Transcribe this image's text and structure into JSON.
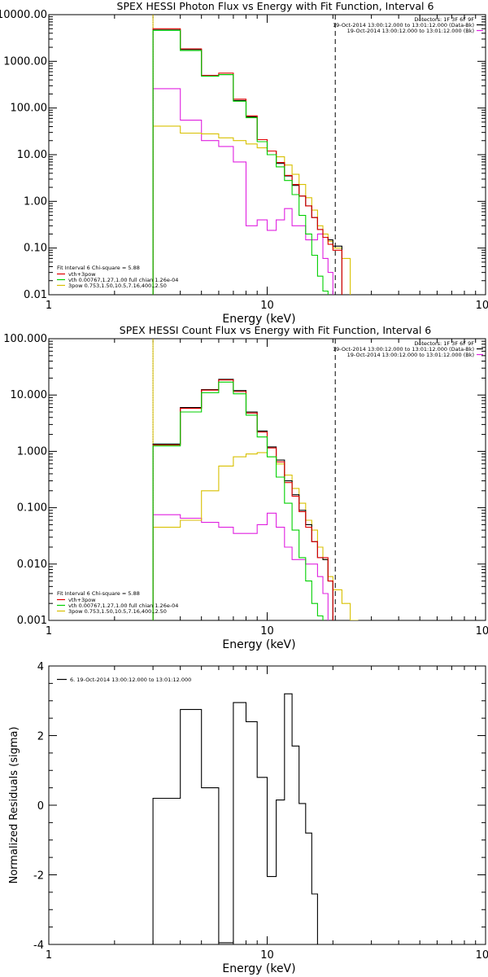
{
  "chart_data": [
    {
      "type": "line",
      "title": "SPEX HESSI Photon Flux vs Energy with Fit Function, Interval 6",
      "xlabel": "Energy (keV)",
      "ylabel": "",
      "xscale": "log",
      "yscale": "log",
      "xlim": [
        1,
        100
      ],
      "ylim": [
        0.01,
        10000
      ],
      "xticks": [
        "1",
        "10",
        "100"
      ],
      "yticks": [
        "0.01",
        "0.10",
        "1.00",
        "10.00",
        "100.00",
        "1000.00",
        "10000.00"
      ],
      "vlines": [
        {
          "x": 3,
          "style": "dotted",
          "color": "#000000"
        },
        {
          "x": 3,
          "style": "solid",
          "color": "#d8c000"
        },
        {
          "x": 20.5,
          "style": "dashed",
          "color": "#000000"
        }
      ],
      "header_lines": [
        "Detectors: 1F 3F 6F 9F",
        "19-Oct-2014 13:00:12.000 to 13:01:12.000 (Data-Bk)",
        "19-Oct-2014 13:00:12.000 to 13:01:12.000 (Bk)"
      ],
      "header_colors": [
        "",
        "#000000",
        "#e020e0"
      ],
      "legend_title": "Fit Interval 6   Chi-square = 5.88",
      "legend": [
        {
          "label": "vth+3pow",
          "color": "#e00000"
        },
        {
          "label": "vth 0.00767,1.27,1.00  full chian 1.26e-04",
          "color": "#00d000"
        },
        {
          "label": "3pow 0.753,1.50,10.5,7.16,400.,2.50",
          "color": "#d8c000"
        }
      ],
      "edges": [
        3,
        4,
        5,
        6,
        7,
        8,
        9,
        10,
        11,
        12,
        13,
        14,
        15,
        16,
        17,
        18,
        19,
        20,
        22,
        24,
        26
      ],
      "series": [
        {
          "name": "Data-Bk",
          "color": "#000000",
          "values": [
            4700,
            1800,
            500,
            520,
            145,
            65,
            21,
            12,
            6.5,
            3.5,
            2.2,
            1.3,
            0.8,
            0.45,
            0.25,
            0.17,
            0.15,
            0.11,
            null,
            null
          ]
        },
        {
          "name": "vth+3pow",
          "color": "#e00000",
          "values": [
            5000,
            1850,
            500,
            560,
            155,
            68,
            21,
            12,
            6.8,
            3.6,
            2.3,
            1.3,
            0.8,
            0.45,
            0.25,
            0.17,
            0.12,
            0.09,
            null,
            null
          ]
        },
        {
          "name": "vth",
          "color": "#00d000",
          "values": [
            4600,
            1700,
            480,
            520,
            140,
            62,
            19,
            10,
            5.5,
            2.8,
            1.4,
            0.5,
            0.2,
            0.07,
            0.025,
            0.012,
            0.005,
            null,
            null,
            null
          ]
        },
        {
          "name": "3pow",
          "color": "#d8c000",
          "values": [
            41,
            29,
            28,
            23,
            20,
            17,
            14,
            12,
            9,
            6,
            3.8,
            2.3,
            1.2,
            0.65,
            0.3,
            0.2,
            0.14,
            0.1,
            0.06,
            0.005
          ]
        },
        {
          "name": "Bk",
          "color": "#e020e0",
          "values": [
            260,
            55,
            20,
            15,
            7,
            0.3,
            0.4,
            0.24,
            0.4,
            0.7,
            0.3,
            0.3,
            0.15,
            0.15,
            0.2,
            0.06,
            0.03,
            0.005,
            null,
            null
          ]
        }
      ]
    },
    {
      "type": "line",
      "title": "SPEX HESSI Count Flux vs Energy with Fit Function, Interval 6",
      "xlabel": "Energy (keV)",
      "ylabel": "",
      "xscale": "log",
      "yscale": "log",
      "xlim": [
        1,
        100
      ],
      "ylim": [
        0.001,
        100
      ],
      "xticks": [
        "1",
        "10",
        "100"
      ],
      "yticks": [
        "0.001",
        "0.010",
        "0.100",
        "1.000",
        "10.000",
        "100.000"
      ],
      "vlines": [
        {
          "x": 3,
          "style": "dotted",
          "color": "#000000"
        },
        {
          "x": 3,
          "style": "solid",
          "color": "#d8c000"
        },
        {
          "x": 20.5,
          "style": "dashed",
          "color": "#000000"
        }
      ],
      "header_lines": [
        "Detectors: 1F 3F 6F 9F",
        "19-Oct-2014 13:00:12.000 to 13:01:12.000 (Data-Bk)",
        "19-Oct-2014 13:00:12.000 to 13:01:12.000 (Bk)"
      ],
      "header_colors": [
        "",
        "#000000",
        "#e020e0"
      ],
      "legend_title": "Fit Interval 6   Chi-square = 5.88",
      "legend": [
        {
          "label": "vth+3pow",
          "color": "#e00000"
        },
        {
          "label": "vth 0.00767,1.27,1.00  full chian 1.26e-04",
          "color": "#00d000"
        },
        {
          "label": "3pow 0.753,1.50,10.5,7.16,400.,2.50",
          "color": "#d8c000"
        }
      ],
      "edges": [
        3,
        4,
        5,
        6,
        7,
        8,
        9,
        10,
        11,
        12,
        13,
        14,
        15,
        16,
        17,
        18,
        19,
        20,
        22,
        24,
        26,
        28
      ],
      "series": [
        {
          "name": "Data-Bk",
          "color": "#000000",
          "values": [
            1.35,
            6.0,
            12.5,
            19,
            12,
            5.0,
            2.3,
            1.2,
            0.7,
            0.3,
            0.17,
            0.09,
            0.05,
            0.025,
            0.013,
            0.012,
            0.005,
            null,
            null,
            null,
            null
          ]
        },
        {
          "name": "vth+3pow",
          "color": "#e00000",
          "values": [
            1.3,
            5.8,
            12.2,
            18.5,
            11.5,
            4.8,
            2.2,
            1.15,
            0.65,
            0.28,
            0.16,
            0.085,
            0.045,
            0.025,
            0.013,
            0.013,
            0.005,
            null,
            null,
            null,
            null
          ]
        },
        {
          "name": "vth",
          "color": "#00d000",
          "values": [
            1.25,
            5.0,
            11,
            17,
            10.5,
            4.4,
            1.8,
            0.8,
            0.35,
            0.12,
            0.04,
            0.013,
            0.005,
            0.002,
            0.0012,
            0.0005,
            null,
            null,
            null,
            null,
            null
          ]
        },
        {
          "name": "3pow",
          "color": "#d8c000",
          "values": [
            0.045,
            0.06,
            0.2,
            0.55,
            0.8,
            0.9,
            0.95,
            0.8,
            0.6,
            0.38,
            0.22,
            0.12,
            0.06,
            0.04,
            0.02,
            0.012,
            0.006,
            0.0035,
            0.002,
            0.001,
            0.0005
          ]
        },
        {
          "name": "Bk",
          "color": "#e020e0",
          "values": [
            0.075,
            0.065,
            0.055,
            0.045,
            0.035,
            0.035,
            0.05,
            0.08,
            0.045,
            0.02,
            0.012,
            0.012,
            0.01,
            0.01,
            0.006,
            0.003,
            0.0005,
            null,
            null,
            null,
            null
          ]
        }
      ]
    },
    {
      "type": "line",
      "title": "",
      "xlabel": "Energy (keV)",
      "ylabel": "Normalized Residuals (sigma)",
      "xscale": "log",
      "yscale": "linear",
      "xlim": [
        1,
        100
      ],
      "ylim": [
        -4,
        4
      ],
      "xticks": [
        "1",
        "10",
        "100"
      ],
      "yticks": [
        "-4",
        "-2",
        "0",
        "2",
        "4"
      ],
      "legend": [
        {
          "label": "6. 19-Oct-2014 13:00:12.000 to 13:01:12.000",
          "color": "#000000"
        }
      ],
      "edges": [
        3,
        4,
        5,
        6,
        7,
        8,
        9,
        10,
        11,
        12,
        13,
        14,
        15,
        16,
        17,
        18,
        19,
        20
      ],
      "series": [
        {
          "name": "",
          "color": "#000000",
          "values": [
            0.2,
            2.75,
            0.5,
            -3.95,
            2.95,
            2.4,
            0.8,
            -2.05,
            0.15,
            3.2,
            1.7,
            0.05,
            -0.8,
            -2.55,
            null,
            null,
            null
          ]
        }
      ]
    }
  ]
}
